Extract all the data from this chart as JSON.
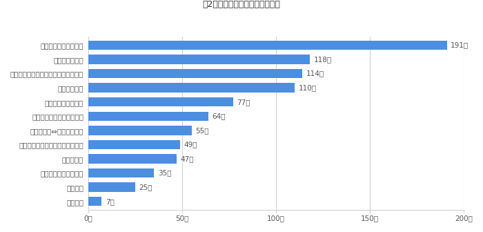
{
  "categories": [
    "感情分析",
    "文脈理解",
    "プログラムコード翻訳",
    "構成・添削",
    "プログラムコードチェック・修正",
    "翻訳（英語⇔日本語など）",
    "新規プログラムコード作成",
    "コンテンツ作成補助",
    "要約・簡易化",
    "言い回しの変容（表現方法を変える）",
    "質問・課題作成",
    "アイデア出し、壁打ち"
  ],
  "values": [
    7,
    25,
    35,
    47,
    49,
    55,
    64,
    77,
    110,
    114,
    118,
    191
  ],
  "bar_color": "#4C8EE0",
  "xlim": [
    0,
    200
  ],
  "xticks": [
    0,
    50,
    100,
    150,
    200
  ],
  "xtick_labels": [
    "0人",
    "50人",
    "100人",
    "150人",
    "200人"
  ],
  "title": "図2「ＯＩＣＭＡ」主な利用用途",
  "title_fontsize": 9,
  "label_fontsize": 7.5,
  "value_fontsize": 7.5,
  "background_color": "#ffffff",
  "grid_color": "#d0d0d0"
}
